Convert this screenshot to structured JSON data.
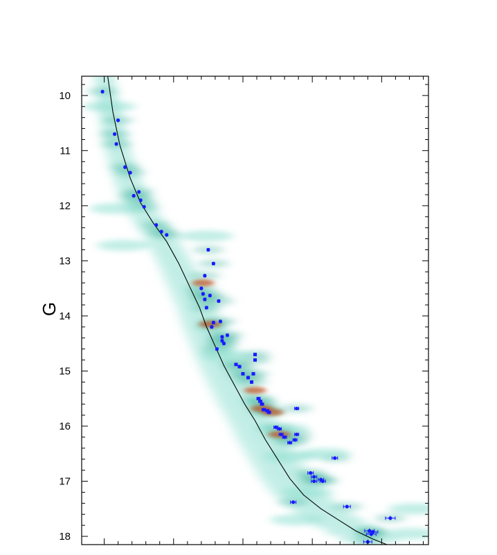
{
  "chart_data": {
    "type": "scatter",
    "title": "",
    "xlabel": "",
    "ylabel": "G",
    "y_inverted": true,
    "ylim": [
      9.65,
      18.15
    ],
    "xlim": [
      0,
      1
    ],
    "y_ticks": [
      10,
      11,
      12,
      13,
      14,
      15,
      16,
      17,
      18
    ],
    "y_tick_labels": [
      "10",
      "11",
      "12",
      "13",
      "14",
      "15",
      "16",
      "17",
      "18"
    ],
    "grid": false,
    "legend": "none",
    "colors": {
      "points": "#1a1aff",
      "fit_line": "#000000",
      "density_low": "#8fe0d2",
      "density_mid": "#3fb39a",
      "density_high": "#c0501f"
    },
    "series": [
      {
        "kind": "points_with_error_bars",
        "x": [
          0.06,
          0.105,
          0.095,
          0.1,
          0.125,
          0.14,
          0.15,
          0.165,
          0.17,
          0.18,
          0.215,
          0.23,
          0.245,
          0.365,
          0.38,
          0.355,
          0.345,
          0.35,
          0.355,
          0.36,
          0.37,
          0.395,
          0.38,
          0.375,
          0.4,
          0.42,
          0.405,
          0.41,
          0.39,
          0.405,
          0.445,
          0.455,
          0.465,
          0.48,
          0.49,
          0.495,
          0.5,
          0.5,
          0.51,
          0.515,
          0.52,
          0.525,
          0.535,
          0.54,
          0.62,
          0.56,
          0.57,
          0.575,
          0.585,
          0.6,
          0.615,
          0.62,
          0.73,
          0.66,
          0.67,
          0.67,
          0.69,
          0.695,
          0.61,
          0.765,
          0.83,
          0.84,
          0.835,
          0.825,
          0.89
        ],
        "y": [
          9.93,
          10.45,
          10.7,
          10.88,
          11.3,
          11.4,
          11.82,
          11.75,
          11.9,
          12.02,
          12.35,
          12.47,
          12.53,
          12.8,
          13.05,
          13.27,
          13.5,
          13.6,
          13.7,
          13.85,
          13.63,
          13.73,
          14.12,
          14.2,
          14.1,
          14.35,
          14.38,
          14.5,
          14.6,
          14.45,
          14.88,
          14.92,
          15.05,
          15.12,
          15.2,
          15.05,
          14.7,
          14.8,
          15.5,
          15.55,
          15.6,
          15.7,
          15.72,
          15.75,
          15.68,
          16.02,
          16.05,
          16.15,
          16.2,
          16.3,
          16.25,
          16.15,
          16.58,
          16.85,
          16.92,
          17.0,
          16.97,
          17.0,
          17.38,
          17.46,
          17.9,
          17.92,
          17.96,
          18.1,
          17.67
        ],
        "x_err": [
          0.002,
          0.002,
          0.002,
          0.002,
          0.002,
          0.002,
          0.002,
          0.002,
          0.002,
          0.002,
          0.002,
          0.002,
          0.002,
          0.003,
          0.003,
          0.003,
          0.003,
          0.003,
          0.003,
          0.003,
          0.003,
          0.003,
          0.003,
          0.003,
          0.003,
          0.003,
          0.003,
          0.003,
          0.003,
          0.003,
          0.004,
          0.004,
          0.004,
          0.004,
          0.004,
          0.004,
          0.004,
          0.004,
          0.005,
          0.005,
          0.005,
          0.005,
          0.005,
          0.005,
          0.006,
          0.006,
          0.006,
          0.006,
          0.006,
          0.006,
          0.006,
          0.006,
          0.008,
          0.008,
          0.008,
          0.008,
          0.008,
          0.008,
          0.008,
          0.01,
          0.014,
          0.014,
          0.014,
          0.012,
          0.014
        ],
        "y_err": [
          0.02,
          0.02,
          0.02,
          0.02,
          0.02,
          0.02,
          0.02,
          0.02,
          0.02,
          0.02,
          0.02,
          0.02,
          0.02,
          0.02,
          0.02,
          0.02,
          0.02,
          0.02,
          0.02,
          0.02,
          0.02,
          0.02,
          0.02,
          0.02,
          0.02,
          0.02,
          0.02,
          0.02,
          0.02,
          0.02,
          0.02,
          0.02,
          0.02,
          0.02,
          0.02,
          0.02,
          0.02,
          0.02,
          0.025,
          0.025,
          0.025,
          0.025,
          0.025,
          0.025,
          0.025,
          0.025,
          0.025,
          0.025,
          0.025,
          0.025,
          0.025,
          0.025,
          0.03,
          0.03,
          0.03,
          0.03,
          0.03,
          0.03,
          0.03,
          0.03,
          0.04,
          0.04,
          0.04,
          0.04,
          0.04
        ]
      },
      {
        "kind": "line",
        "x": [
          0.075,
          0.09,
          0.11,
          0.14,
          0.17,
          0.205,
          0.245,
          0.28,
          0.31,
          0.34,
          0.36,
          0.385,
          0.41,
          0.44,
          0.47,
          0.5,
          0.53,
          0.56,
          0.6,
          0.64,
          0.69,
          0.74,
          0.79,
          0.84,
          0.88
        ],
        "y": [
          9.65,
          10.3,
          10.9,
          11.5,
          11.95,
          12.3,
          12.65,
          13.05,
          13.45,
          13.85,
          14.2,
          14.55,
          14.9,
          15.25,
          15.6,
          15.9,
          16.25,
          16.55,
          16.95,
          17.25,
          17.5,
          17.7,
          17.9,
          18.05,
          18.15
        ]
      }
    ]
  }
}
